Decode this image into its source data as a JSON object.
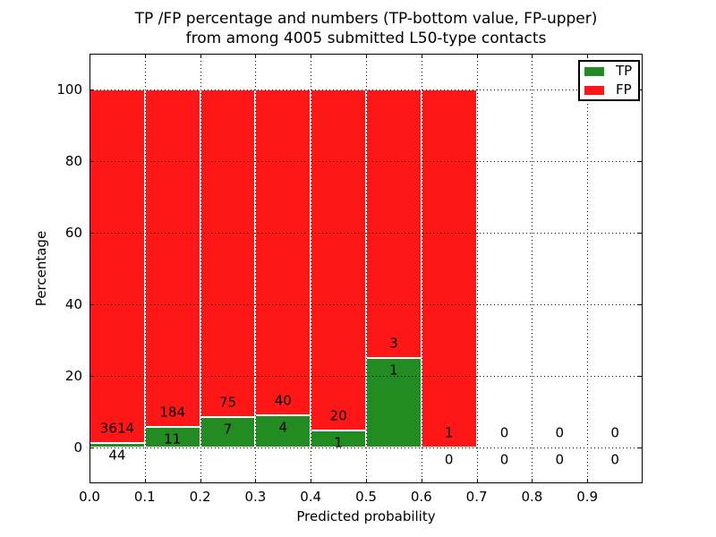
{
  "title": {
    "line1": "TP /FP percentage and numbers (TP-bottom value, FP-upper)",
    "line2": "from among 4005 submitted L50-type contacts"
  },
  "chart_data": {
    "type": "bar",
    "stacked": true,
    "normalized": "percent_of_bin_total",
    "title": "TP /FP percentage and numbers (TP-bottom value, FP-upper) from among 4005 submitted L50-type contacts",
    "xlabel": "Predicted probability",
    "ylabel": "Percentage",
    "categories": [
      "0.0-0.1",
      "0.1-0.2",
      "0.2-0.3",
      "0.3-0.4",
      "0.4-0.5",
      "0.5-0.6",
      "0.6-0.7",
      "0.7-0.8",
      "0.8-0.9",
      "0.9-1.0"
    ],
    "series": [
      {
        "name": "TP",
        "color": "#228b22",
        "values": [
          44,
          11,
          7,
          4,
          1,
          1,
          0,
          0,
          0,
          0
        ]
      },
      {
        "name": "FP",
        "color": "#ff1616",
        "values": [
          3614,
          184,
          75,
          40,
          20,
          3,
          1,
          0,
          0,
          0
        ]
      }
    ],
    "tp_percent_of_bin": [
      1.2,
      5.6,
      8.5,
      9.1,
      4.8,
      25.0,
      0.0,
      null,
      null,
      null
    ],
    "xticks": [
      "0.0",
      "0.1",
      "0.2",
      "0.3",
      "0.4",
      "0.5",
      "0.6",
      "0.7",
      "0.8",
      "0.9"
    ],
    "yticks": [
      0,
      20,
      40,
      60,
      80,
      100
    ],
    "xlim": [
      0.0,
      1.0
    ],
    "ylim": [
      -10,
      110
    ],
    "grid": "dotted",
    "legend": {
      "position": "upper-right",
      "entries": [
        {
          "label": "TP",
          "color": "#228b22"
        },
        {
          "label": "FP",
          "color": "#ff1616"
        }
      ]
    }
  }
}
